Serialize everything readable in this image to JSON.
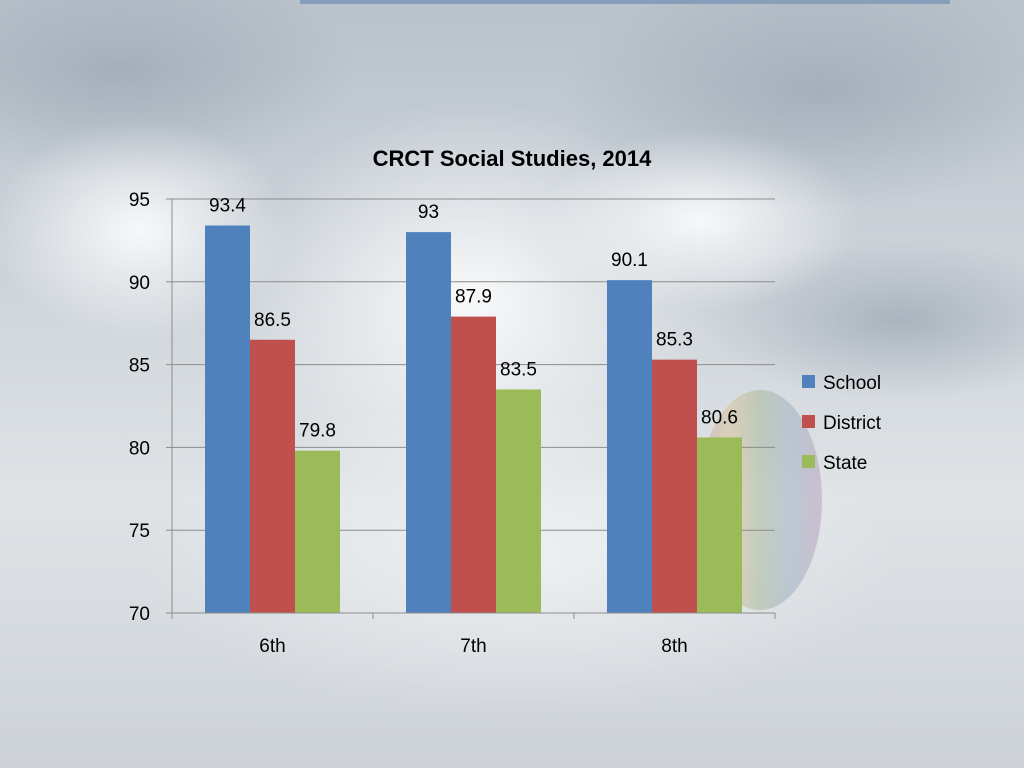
{
  "chart_data": {
    "type": "bar",
    "title": "CRCT Social Studies, 2014",
    "xlabel": "",
    "ylabel": "",
    "categories": [
      "6th",
      "7th",
      "8th"
    ],
    "series": [
      {
        "name": "School",
        "values": [
          93.4,
          93,
          90.1
        ],
        "color": "#4f81bd"
      },
      {
        "name": "District",
        "values": [
          86.5,
          87.9,
          85.3
        ],
        "color": "#c0504d"
      },
      {
        "name": "State",
        "values": [
          79.8,
          83.5,
          80.6
        ],
        "color": "#9bbb59"
      }
    ],
    "ylim": [
      70,
      95
    ],
    "yticks": [
      70,
      75,
      80,
      85,
      90,
      95
    ],
    "grid": true,
    "legend_position": "right"
  }
}
